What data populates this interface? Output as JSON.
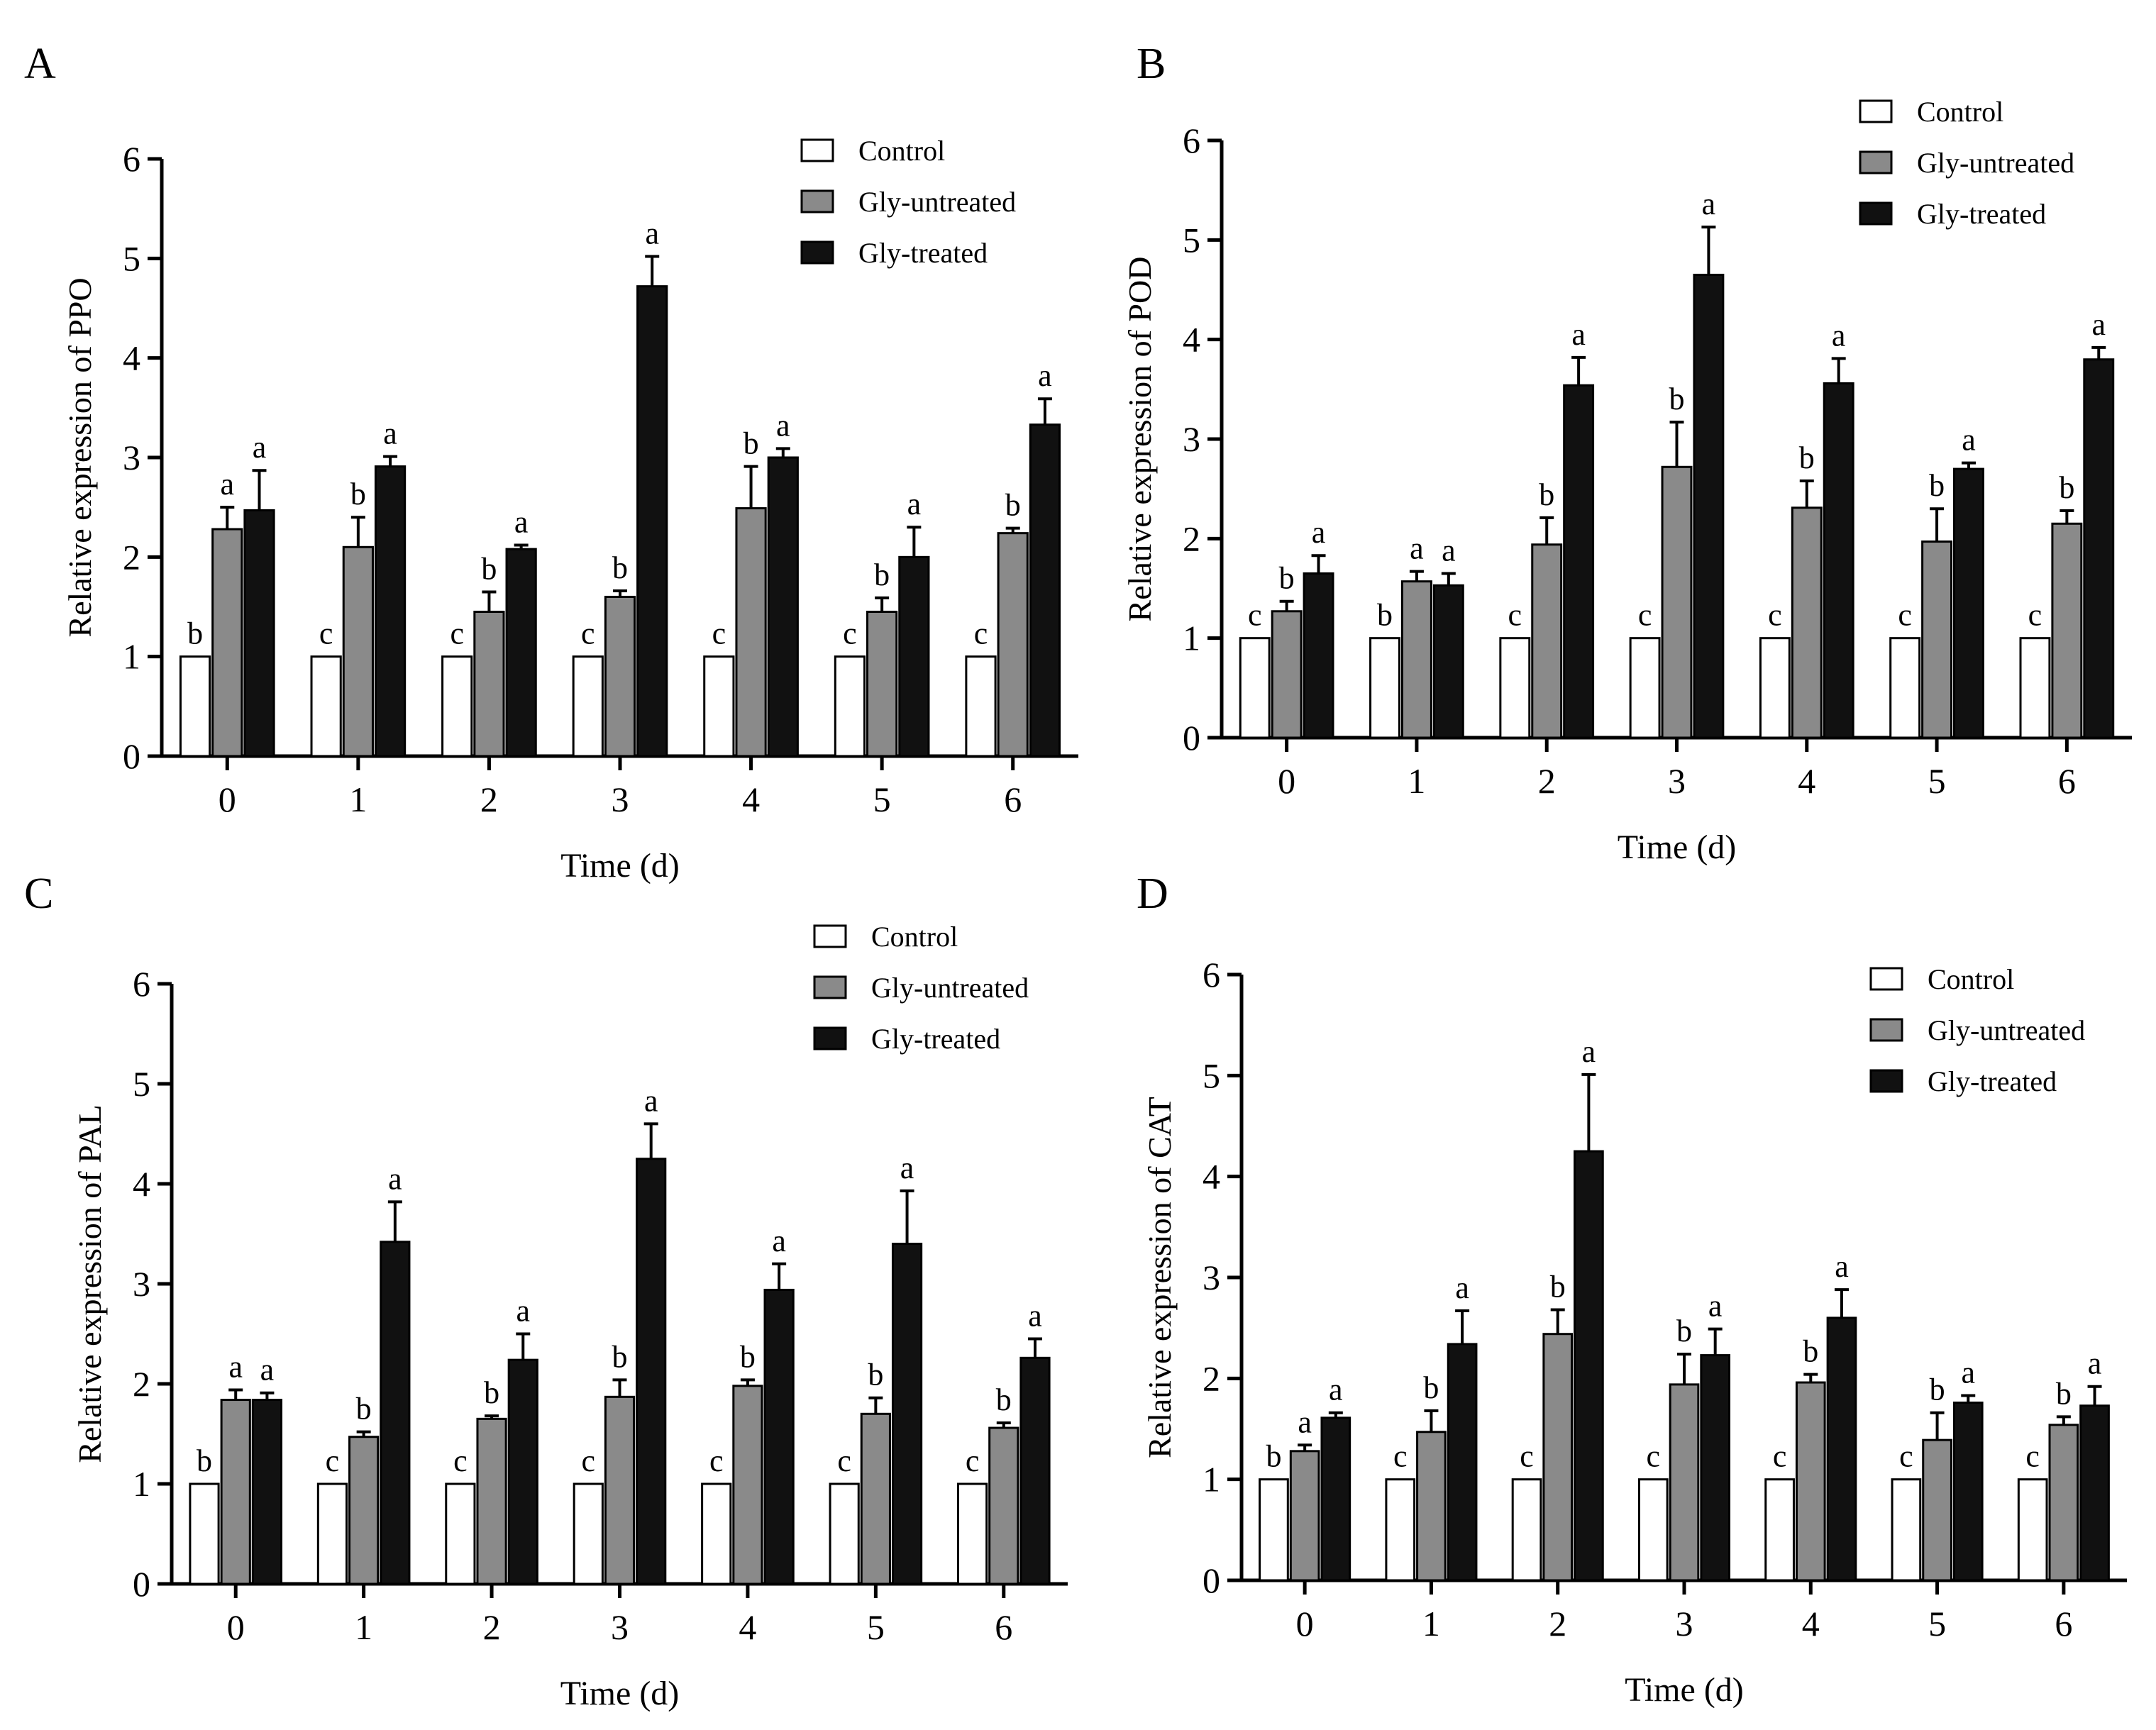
{
  "colors": {
    "control": "#ffffff",
    "gly_untreated": "#8a8a8a",
    "gly_treated": "#111111",
    "axis": "#000000"
  },
  "chart_data": [
    {
      "panel": "A",
      "type": "bar",
      "xlabel": "Time (d)",
      "ylabel": "Relative expression of PPO",
      "ylim": [
        0,
        6
      ],
      "yticks": [
        "0",
        "1",
        "2",
        "3",
        "4",
        "5",
        "6"
      ],
      "categories": [
        "0",
        "1",
        "2",
        "3",
        "4",
        "5",
        "6"
      ],
      "legend_position": "top-right",
      "series": [
        {
          "name": "Control",
          "values": [
            1,
            1,
            1,
            1,
            1,
            1,
            1
          ],
          "errors": [
            0,
            0,
            0,
            0,
            0,
            0,
            0
          ],
          "letters": [
            "b",
            "c",
            "c",
            "c",
            "c",
            "c",
            "c"
          ]
        },
        {
          "name": "Gly-untreated",
          "values": [
            2.28,
            2.1,
            1.45,
            1.6,
            2.49,
            1.45,
            2.24
          ],
          "errors": [
            0.22,
            0.3,
            0.2,
            0.06,
            0.42,
            0.14,
            0.05
          ],
          "letters": [
            "a",
            "b",
            "b",
            "b",
            "b",
            "b",
            "b"
          ]
        },
        {
          "name": "Gly-treated",
          "values": [
            2.47,
            2.91,
            2.08,
            4.72,
            3.0,
            2.0,
            3.33
          ],
          "errors": [
            0.4,
            0.1,
            0.04,
            0.3,
            0.09,
            0.3,
            0.26
          ],
          "letters": [
            "a",
            "a",
            "a",
            "a",
            "a",
            "a",
            "a"
          ]
        }
      ]
    },
    {
      "panel": "B",
      "type": "bar",
      "xlabel": "Time (d)",
      "ylabel": "Relative expression of POD",
      "ylim": [
        0,
        6
      ],
      "yticks": [
        "0",
        "1",
        "2",
        "3",
        "4",
        "5",
        "6"
      ],
      "categories": [
        "0",
        "1",
        "2",
        "3",
        "4",
        "5",
        "6"
      ],
      "legend_position": "top-right",
      "series": [
        {
          "name": "Control",
          "values": [
            1,
            1,
            1,
            1,
            1,
            1,
            1
          ],
          "errors": [
            0,
            0,
            0,
            0,
            0,
            0,
            0
          ],
          "letters": [
            "c",
            "b",
            "c",
            "c",
            "c",
            "c",
            "c"
          ]
        },
        {
          "name": "Gly-untreated",
          "values": [
            1.27,
            1.57,
            1.94,
            2.72,
            2.31,
            1.97,
            2.15
          ],
          "errors": [
            0.1,
            0.1,
            0.27,
            0.45,
            0.27,
            0.33,
            0.13
          ],
          "letters": [
            "b",
            "a",
            "b",
            "b",
            "b",
            "b",
            "b"
          ]
        },
        {
          "name": "Gly-treated",
          "values": [
            1.65,
            1.53,
            3.54,
            4.65,
            3.56,
            2.7,
            3.8
          ],
          "errors": [
            0.18,
            0.12,
            0.28,
            0.48,
            0.25,
            0.06,
            0.12
          ],
          "letters": [
            "a",
            "a",
            "a",
            "a",
            "a",
            "a",
            "a"
          ]
        }
      ]
    },
    {
      "panel": "C",
      "type": "bar",
      "xlabel": "Time (d)",
      "ylabel": "Relative expression of PAL",
      "ylim": [
        0,
        6
      ],
      "yticks": [
        "0",
        "1",
        "2",
        "3",
        "4",
        "5",
        "6"
      ],
      "categories": [
        "0",
        "1",
        "2",
        "3",
        "4",
        "5",
        "6"
      ],
      "legend_position": "top-right",
      "series": [
        {
          "name": "Control",
          "values": [
            1,
            1,
            1,
            1,
            1,
            1,
            1
          ],
          "errors": [
            0,
            0,
            0,
            0,
            0,
            0,
            0
          ],
          "letters": [
            "b",
            "c",
            "c",
            "c",
            "c",
            "c",
            "c"
          ]
        },
        {
          "name": "Gly-untreated",
          "values": [
            1.84,
            1.47,
            1.65,
            1.87,
            1.98,
            1.7,
            1.56
          ],
          "errors": [
            0.1,
            0.05,
            0.03,
            0.17,
            0.06,
            0.16,
            0.05
          ],
          "letters": [
            "a",
            "b",
            "b",
            "b",
            "b",
            "b",
            "b"
          ]
        },
        {
          "name": "Gly-treated",
          "values": [
            1.84,
            3.42,
            2.24,
            4.25,
            2.94,
            3.4,
            2.26
          ],
          "errors": [
            0.07,
            0.4,
            0.26,
            0.35,
            0.26,
            0.53,
            0.19
          ],
          "letters": [
            "a",
            "a",
            "a",
            "a",
            "a",
            "a",
            "a"
          ]
        }
      ]
    },
    {
      "panel": "D",
      "type": "bar",
      "xlabel": "Time (d)",
      "ylabel": "Relative expression of CAT",
      "ylim": [
        0,
        6
      ],
      "yticks": [
        "0",
        "1",
        "2",
        "3",
        "4",
        "5",
        "6"
      ],
      "categories": [
        "0",
        "1",
        "2",
        "3",
        "4",
        "5",
        "6"
      ],
      "legend_position": "top-right",
      "series": [
        {
          "name": "Control",
          "values": [
            1,
            1,
            1,
            1,
            1,
            1,
            1
          ],
          "errors": [
            0,
            0,
            0,
            0,
            0,
            0,
            0
          ],
          "letters": [
            "b",
            "c",
            "c",
            "c",
            "c",
            "c",
            "c"
          ]
        },
        {
          "name": "Gly-untreated",
          "values": [
            1.28,
            1.47,
            2.44,
            1.94,
            1.96,
            1.39,
            1.54
          ],
          "errors": [
            0.06,
            0.21,
            0.24,
            0.3,
            0.08,
            0.27,
            0.08
          ],
          "letters": [
            "a",
            "b",
            "b",
            "b",
            "b",
            "b",
            "b"
          ]
        },
        {
          "name": "Gly-treated",
          "values": [
            1.61,
            2.34,
            4.25,
            2.23,
            2.6,
            1.76,
            1.73
          ],
          "errors": [
            0.05,
            0.33,
            0.76,
            0.26,
            0.28,
            0.07,
            0.19
          ],
          "letters": [
            "a",
            "a",
            "a",
            "a",
            "a",
            "a",
            "a"
          ]
        }
      ]
    }
  ]
}
